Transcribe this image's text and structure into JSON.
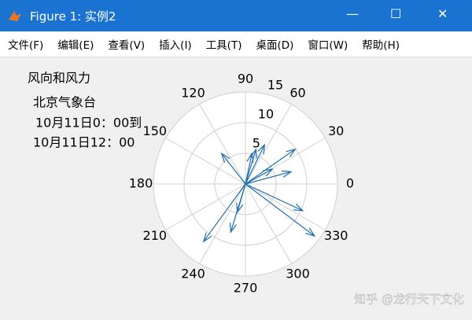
{
  "window": {
    "title": "Figure 1: 实例2",
    "menu": [
      "文件(F)",
      "编辑(E)",
      "查看(V)",
      "插入(I)",
      "工具(T)",
      "桌面(D)",
      "窗口(W)",
      "帮助(H)"
    ]
  },
  "chart_data": {
    "type": "compass",
    "title": "风向和风力",
    "annotations": [
      "北京气象台",
      "10月11日0：00到",
      "10月11日12：00"
    ],
    "series": [
      {
        "color": "#1f6fb0",
        "theta": [
          35,
          15,
          29,
          64,
          73,
          78,
          128,
          253,
          254,
          234,
          323,
          335
        ],
        "r": [
          9.9,
          7.7,
          5,
          7.1,
          5.9,
          5.1,
          6.3,
          8.2,
          4.8,
          11.6,
          14.1,
          10.3
        ]
      }
    ],
    "rlim": [
      0,
      15
    ],
    "rticks": [
      5,
      10,
      15
    ],
    "thetaticks": [
      0,
      30,
      60,
      90,
      120,
      150,
      180,
      210,
      240,
      270,
      300,
      330
    ],
    "grid": true,
    "watermark": "知乎 @龙行天下文化"
  }
}
